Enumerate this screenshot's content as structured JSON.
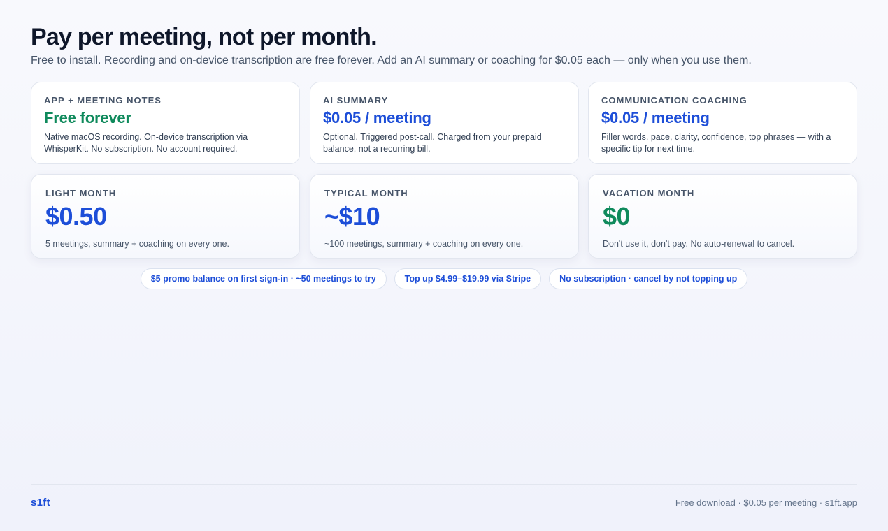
{
  "header": {
    "title": "Pay per meeting, not per month.",
    "subtitle": "Free to install. Recording and on-device transcription are free forever. Add an AI summary or coaching for $0.05 each — only when you use them."
  },
  "plans": [
    {
      "label": "APP + MEETING NOTES",
      "price": "Free forever",
      "price_color": "#0f8a5c",
      "description": "Native macOS recording. On-device transcription via WhisperKit. No subscription. No account required."
    },
    {
      "label": "AI SUMMARY",
      "price": "$0.05 / meeting",
      "price_color": "#1d4ed8",
      "description": "Optional. Triggered post-call. Charged from your prepaid balance, not a recurring bill."
    },
    {
      "label": "COMMUNICATION COACHING",
      "price": "$0.05 / meeting",
      "price_color": "#1d4ed8",
      "description": "Filler words, pace, clarity, confidence, top phrases — with a specific tip for next time."
    }
  ],
  "examples": [
    {
      "label": "LIGHT MONTH",
      "amount": "$0.50",
      "amount_color": "#1d4ed8",
      "description": "5 meetings, summary + coaching on every one."
    },
    {
      "label": "TYPICAL MONTH",
      "amount": "~$10",
      "amount_color": "#1d4ed8",
      "description": "~100 meetings, summary + coaching on every one."
    },
    {
      "label": "VACATION MONTH",
      "amount": "$0",
      "amount_color": "#0f8a5c",
      "description": "Don't use it, don't pay. No auto-renewal to cancel."
    }
  ],
  "pills": [
    "$5 promo balance on first sign-in · ~50 meetings to try",
    "Top up $4.99–$19.99 via Stripe",
    "No subscription · cancel by not topping up"
  ],
  "footer": {
    "brand": "s1ft",
    "right_text": "Free download · $0.05 per meeting · s1ft.app"
  }
}
